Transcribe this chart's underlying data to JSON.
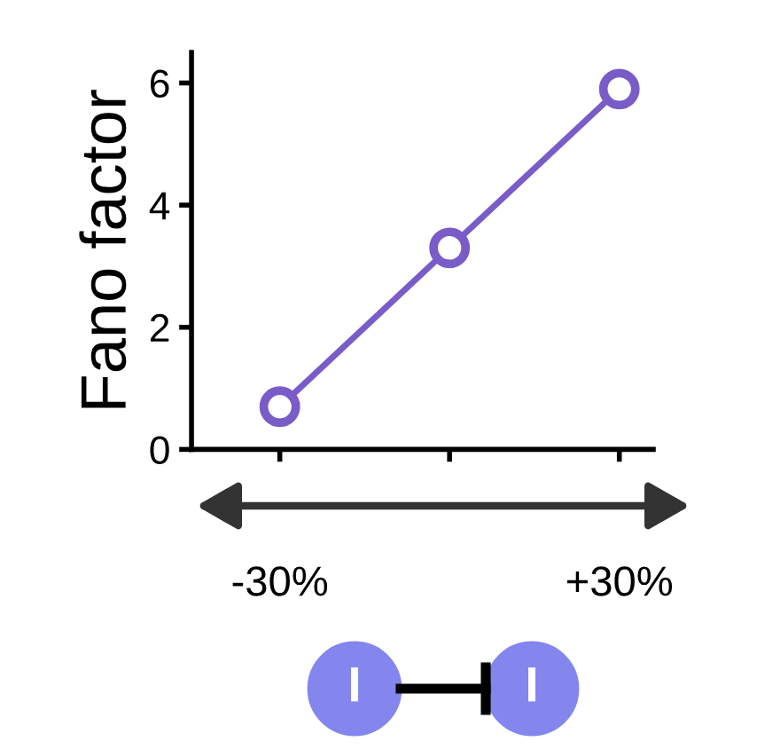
{
  "chart_data": {
    "type": "line",
    "ylabel": "Fano factor",
    "categories": [
      "-30%",
      null,
      "+30%"
    ],
    "series": [
      {
        "color": "#7a5cc8",
        "values": [
          0.7,
          3.3,
          5.9
        ]
      }
    ],
    "ylim": [
      0,
      6.5
    ],
    "yticks": [
      0,
      2,
      4,
      6
    ],
    "marker": "circle",
    "line_style": "solid",
    "grid": false,
    "legend": false,
    "annotations": [
      "I",
      "I"
    ]
  }
}
